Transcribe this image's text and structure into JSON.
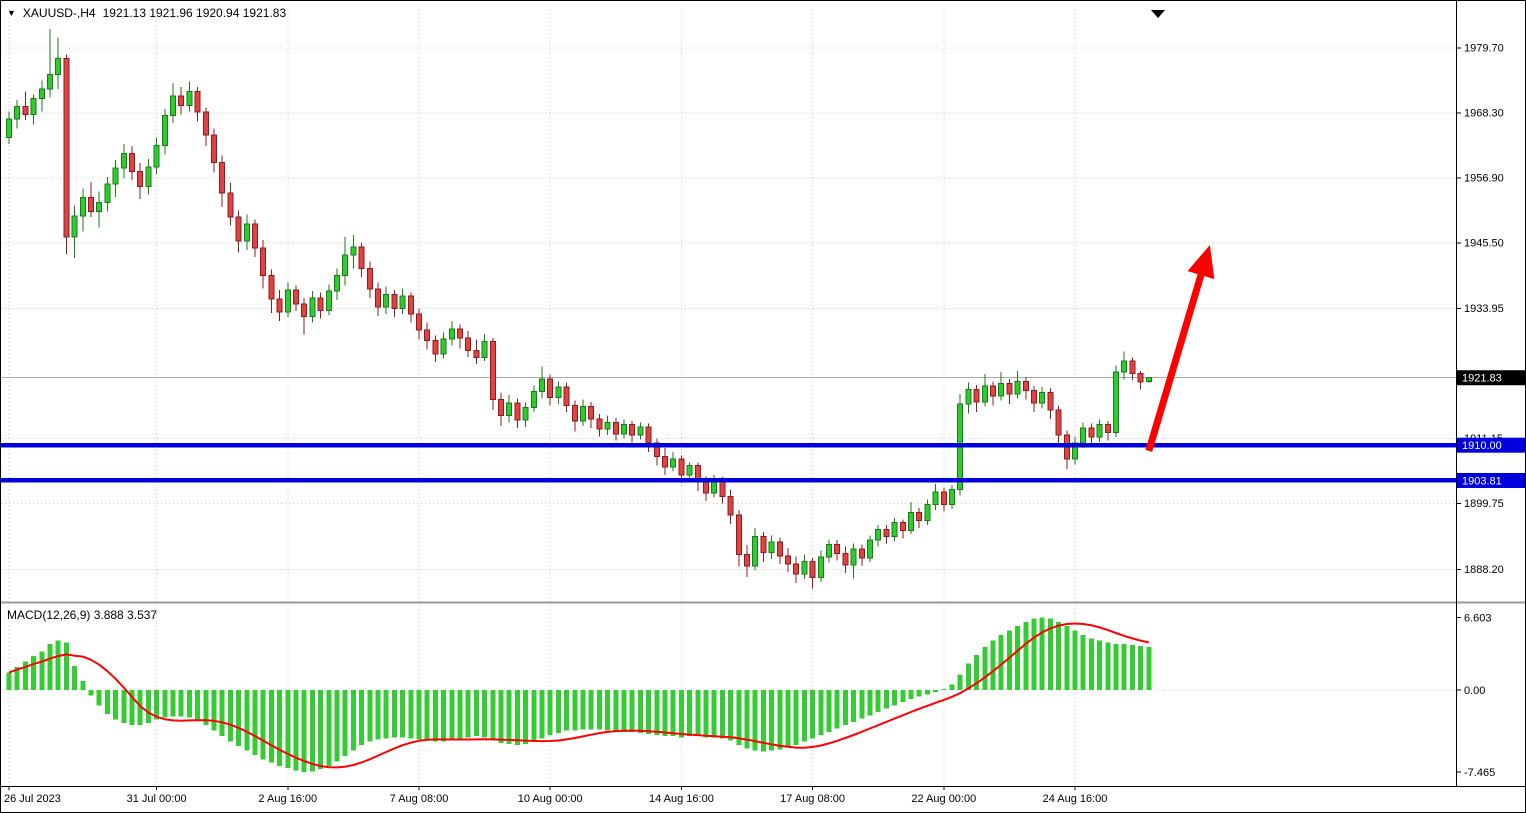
{
  "header": {
    "expand_icon": "▼",
    "symbol_timeframe": "XAUUSD-,H4",
    "ohlc": "1921.13 1921.96 1920.94 1921.83"
  },
  "indicator_label": "MACD(12,26,9) 3.888 3.537",
  "colors": {
    "bull": "#2ecc2e",
    "bull_border": "#1a7a1a",
    "bear": "#e04343",
    "bear_border": "#8f1a1a",
    "grid": "#c8c8c8",
    "level_blue": "#0000dd",
    "signal_red": "#ff0000",
    "histogram_green": "#33cc33",
    "arrow_red": "#fe0000",
    "tag_current_bg": "#000000",
    "current_price_line": "#aaaaaa"
  },
  "chart_data": {
    "type": "candlestick",
    "symbol": "XAUUSD-",
    "timeframe": "H4",
    "title": "XAUUSD-,H4 1921.13 1921.96 1920.94 1921.83",
    "price_axis": {
      "ticks": [
        {
          "value": 1979.7,
          "label": "1979.70"
        },
        {
          "value": 1968.3,
          "label": "1968.30"
        },
        {
          "value": 1956.9,
          "label": "1956.90"
        },
        {
          "value": 1945.5,
          "label": "1945.50"
        },
        {
          "value": 1933.95,
          "label": "1933.95"
        },
        {
          "value": 1911.15,
          "label": "1911.15"
        },
        {
          "value": 1899.75,
          "label": "1899.75"
        },
        {
          "value": 1888.2,
          "label": "1888.20"
        }
      ],
      "current": {
        "value": 1921.83,
        "label": "1921.83"
      },
      "visible_top": 1986.5,
      "visible_bottom": 1882.5
    },
    "levels": [
      {
        "value": 1910.0,
        "label": "1910.00"
      },
      {
        "value": 1903.81,
        "label": "1903.81"
      }
    ],
    "time_labels": [
      {
        "index": 0,
        "text": "26 Jul 2023"
      },
      {
        "index": 18,
        "text": "31 Jul 00:00"
      },
      {
        "index": 34,
        "text": "2 Aug 16:00"
      },
      {
        "index": 50,
        "text": "7 Aug 08:00"
      },
      {
        "index": 66,
        "text": "10 Aug 00:00"
      },
      {
        "index": 82,
        "text": "14 Aug 16:00"
      },
      {
        "index": 98,
        "text": "17 Aug 08:00"
      },
      {
        "index": 114,
        "text": "22 Aug 00:00"
      },
      {
        "index": 130,
        "text": "24 Aug 16:00"
      }
    ],
    "candles": {
      "open": [
        1964.0,
        1967.2,
        1969.4,
        1968.0,
        1970.8,
        1972.5,
        1975.0,
        1977.8,
        1946.5,
        1950.2,
        1953.4,
        1951.0,
        1952.6,
        1955.8,
        1958.6,
        1961.2,
        1958.0,
        1955.4,
        1958.8,
        1962.6,
        1967.8,
        1971.2,
        1969.6,
        1972.0,
        1968.4,
        1964.4,
        1959.6,
        1954.2,
        1950.0,
        1945.8,
        1948.8,
        1944.6,
        1939.8,
        1935.6,
        1933.4,
        1937.2,
        1934.8,
        1932.6,
        1935.8,
        1933.6,
        1937.0,
        1939.8,
        1943.4,
        1944.8,
        1941.0,
        1937.4,
        1934.2,
        1936.4,
        1934.0,
        1936.2,
        1933.0,
        1930.2,
        1928.4,
        1926.0,
        1928.6,
        1930.4,
        1928.8,
        1926.6,
        1925.4,
        1928.2,
        1918.0,
        1915.2,
        1917.4,
        1914.4,
        1916.6,
        1919.4,
        1921.6,
        1918.4,
        1920.2,
        1917.0,
        1914.2,
        1916.8,
        1914.6,
        1912.8,
        1914.0,
        1912.0,
        1913.6,
        1911.8,
        1913.2,
        1910.4,
        1908.0,
        1906.2,
        1907.6,
        1904.8,
        1906.4,
        1903.6,
        1901.6,
        1903.8,
        1901.0,
        1897.8,
        1890.8,
        1888.8,
        1894.0,
        1891.2,
        1893.0,
        1890.6,
        1889.2,
        1887.4,
        1889.6,
        1886.8,
        1890.4,
        1892.6,
        1891.0,
        1889.0,
        1891.8,
        1890.2,
        1893.4,
        1895.2,
        1894.0,
        1896.4,
        1895.0,
        1898.2,
        1896.8,
        1899.6,
        1901.8,
        1899.6,
        1902.2,
        1917.2,
        1919.8,
        1917.6,
        1920.4,
        1918.6,
        1920.8,
        1919.0,
        1921.2,
        1919.6,
        1917.4,
        1919.2,
        1916.2,
        1911.8,
        1907.6,
        1910.4,
        1913.0,
        1911.4,
        1913.6,
        1912.2,
        1922.8,
        1924.8,
        1922.6,
        1921.13
      ],
      "high": [
        1968.5,
        1970.5,
        1972.0,
        1971.5,
        1974.0,
        1983.0,
        1981.5,
        1978.5,
        1952.0,
        1955.0,
        1956.2,
        1954.5,
        1957.0,
        1960.0,
        1962.8,
        1962.5,
        1959.5,
        1960.2,
        1964.0,
        1969.0,
        1973.5,
        1972.8,
        1973.8,
        1972.8,
        1969.2,
        1965.5,
        1960.8,
        1956.0,
        1951.2,
        1950.5,
        1949.6,
        1946.0,
        1940.8,
        1937.2,
        1938.5,
        1938.0,
        1935.8,
        1937.0,
        1936.8,
        1938.2,
        1941.0,
        1946.5,
        1946.9,
        1945.5,
        1942.2,
        1938.5,
        1937.8,
        1937.2,
        1937.5,
        1936.8,
        1934.0,
        1931.5,
        1929.2,
        1929.8,
        1931.8,
        1931.2,
        1930.0,
        1928.5,
        1929.5,
        1928.8,
        1919.2,
        1918.8,
        1918.2,
        1917.5,
        1920.5,
        1923.8,
        1922.4,
        1921.2,
        1921.0,
        1917.8,
        1918.0,
        1917.6,
        1915.5,
        1915.2,
        1914.8,
        1914.5,
        1914.2,
        1914.0,
        1913.8,
        1911.2,
        1909.5,
        1908.8,
        1908.2,
        1907.0,
        1907.0,
        1904.5,
        1904.8,
        1904.4,
        1902.2,
        1898.6,
        1892.5,
        1895.5,
        1894.8,
        1894.2,
        1893.8,
        1892.0,
        1890.5,
        1890.8,
        1890.2,
        1891.5,
        1893.5,
        1893.4,
        1892.2,
        1892.8,
        1892.6,
        1894.2,
        1896.0,
        1896.0,
        1897.2,
        1897.0,
        1900.0,
        1899.0,
        1900.5,
        1903.2,
        1902.6,
        1903.0,
        1919.0,
        1921.0,
        1920.6,
        1922.5,
        1921.2,
        1922.8,
        1921.6,
        1923.0,
        1922.0,
        1920.4,
        1920.2,
        1920.0,
        1917.0,
        1912.6,
        1911.5,
        1914.0,
        1913.8,
        1914.5,
        1914.2,
        1924.0,
        1926.4,
        1925.4,
        1923.0,
        1921.96
      ],
      "low": [
        1962.8,
        1965.5,
        1967.0,
        1966.2,
        1968.5,
        1971.0,
        1972.5,
        1943.5,
        1942.8,
        1947.5,
        1950.0,
        1948.2,
        1951.0,
        1953.5,
        1956.8,
        1956.5,
        1953.2,
        1954.0,
        1957.5,
        1961.0,
        1966.5,
        1968.0,
        1968.5,
        1966.8,
        1962.5,
        1957.8,
        1951.8,
        1948.5,
        1943.8,
        1944.2,
        1943.0,
        1937.5,
        1933.2,
        1931.8,
        1932.5,
        1933.5,
        1929.4,
        1931.5,
        1932.2,
        1932.8,
        1935.5,
        1938.0,
        1941.0,
        1939.5,
        1935.8,
        1932.7,
        1933.0,
        1932.5,
        1933.0,
        1931.5,
        1928.5,
        1926.8,
        1924.6,
        1925.2,
        1927.5,
        1927.0,
        1925.5,
        1924.2,
        1924.8,
        1916.2,
        1913.4,
        1914.0,
        1913.0,
        1913.2,
        1915.8,
        1918.2,
        1917.0,
        1917.2,
        1915.8,
        1912.4,
        1913.4,
        1913.0,
        1911.5,
        1911.8,
        1910.8,
        1911.2,
        1910.5,
        1911.0,
        1908.8,
        1906.4,
        1904.8,
        1905.4,
        1903.4,
        1903.8,
        1902.0,
        1900.2,
        1900.8,
        1899.8,
        1896.2,
        1888.7,
        1886.9,
        1888.0,
        1889.5,
        1890.0,
        1889.2,
        1887.8,
        1885.8,
        1886.5,
        1884.9,
        1886.0,
        1889.4,
        1889.8,
        1887.6,
        1886.6,
        1888.8,
        1889.5,
        1892.2,
        1892.8,
        1893.2,
        1893.6,
        1894.4,
        1895.5,
        1896.0,
        1898.6,
        1898.4,
        1898.8,
        1901.2,
        1915.6,
        1915.8,
        1916.8,
        1917.0,
        1917.8,
        1917.2,
        1918.2,
        1918.0,
        1915.8,
        1916.4,
        1914.6,
        1909.8,
        1905.8,
        1906.6,
        1909.5,
        1909.8,
        1910.6,
        1910.8,
        1911.4,
        1921.5,
        1921.4,
        1919.8,
        1920.94
      ],
      "close": [
        1967.2,
        1969.4,
        1968.0,
        1970.8,
        1972.5,
        1975.0,
        1977.8,
        1946.5,
        1950.2,
        1953.4,
        1951.0,
        1952.6,
        1955.8,
        1958.6,
        1961.2,
        1958.0,
        1955.4,
        1958.8,
        1962.6,
        1967.8,
        1971.2,
        1969.6,
        1972.0,
        1968.4,
        1964.4,
        1959.6,
        1954.2,
        1950.0,
        1945.8,
        1948.8,
        1944.6,
        1939.8,
        1935.6,
        1933.4,
        1937.2,
        1934.8,
        1932.6,
        1935.8,
        1933.6,
        1937.0,
        1939.8,
        1943.4,
        1944.8,
        1941.0,
        1937.4,
        1934.2,
        1936.4,
        1934.0,
        1936.2,
        1933.0,
        1930.2,
        1928.4,
        1926.0,
        1928.6,
        1930.4,
        1928.8,
        1926.6,
        1925.4,
        1928.2,
        1918.0,
        1915.2,
        1917.4,
        1914.4,
        1916.6,
        1919.4,
        1921.6,
        1918.4,
        1920.2,
        1917.0,
        1914.2,
        1916.8,
        1914.6,
        1912.8,
        1914.0,
        1912.0,
        1913.6,
        1911.8,
        1913.2,
        1910.4,
        1908.0,
        1906.2,
        1907.6,
        1904.8,
        1906.4,
        1903.6,
        1901.6,
        1903.8,
        1901.0,
        1897.8,
        1890.8,
        1888.8,
        1894.0,
        1891.2,
        1893.0,
        1890.6,
        1889.2,
        1887.4,
        1889.6,
        1886.8,
        1890.4,
        1892.6,
        1891.0,
        1889.0,
        1891.8,
        1890.2,
        1893.4,
        1895.2,
        1894.0,
        1896.4,
        1895.0,
        1898.2,
        1896.8,
        1899.6,
        1901.8,
        1899.6,
        1902.2,
        1917.2,
        1919.8,
        1917.6,
        1920.4,
        1918.6,
        1920.8,
        1919.0,
        1921.2,
        1919.6,
        1917.4,
        1919.2,
        1916.2,
        1911.8,
        1907.6,
        1910.4,
        1913.0,
        1911.4,
        1913.6,
        1912.2,
        1922.8,
        1924.8,
        1922.6,
        1921.1,
        1921.83
      ]
    },
    "macd": {
      "params": "12,26,9",
      "main_last": "3.888",
      "signal_last": "3.537",
      "signal_period": 9,
      "axis_ticks": [
        {
          "value": 6.603,
          "label": "6.603"
        },
        {
          "value": 0,
          "label": "0.00"
        },
        {
          "value": -7.465,
          "label": "-7.465"
        }
      ],
      "values": [
        1.6,
        2.1,
        2.6,
        3.1,
        3.5,
        4.2,
        4.5,
        4.3,
        2.2,
        0.8,
        -0.5,
        -1.4,
        -2.2,
        -2.7,
        -3.0,
        -3.2,
        -3.2,
        -3.0,
        -2.7,
        -2.5,
        -2.4,
        -2.4,
        -2.5,
        -2.8,
        -3.2,
        -3.7,
        -4.2,
        -4.7,
        -5.1,
        -5.5,
        -5.9,
        -6.3,
        -6.6,
        -6.9,
        -7.1,
        -7.3,
        -7.465,
        -7.4,
        -7.2,
        -6.9,
        -6.5,
        -6.0,
        -5.5,
        -5.0,
        -4.7,
        -4.5,
        -4.4,
        -4.3,
        -4.3,
        -4.4,
        -4.5,
        -4.6,
        -4.7,
        -4.7,
        -4.6,
        -4.4,
        -4.3,
        -4.2,
        -4.3,
        -4.6,
        -4.8,
        -4.9,
        -5.0,
        -4.9,
        -4.7,
        -4.4,
        -4.1,
        -3.9,
        -3.7,
        -3.7,
        -3.6,
        -3.6,
        -3.6,
        -3.7,
        -3.7,
        -3.8,
        -3.8,
        -3.9,
        -4.0,
        -4.1,
        -4.2,
        -4.2,
        -4.3,
        -4.2,
        -4.2,
        -4.3,
        -4.3,
        -4.4,
        -4.6,
        -5.0,
        -5.3,
        -5.5,
        -5.6,
        -5.5,
        -5.4,
        -5.2,
        -5.0,
        -4.7,
        -4.4,
        -4.1,
        -3.8,
        -3.5,
        -3.2,
        -2.9,
        -2.6,
        -2.3,
        -2.0,
        -1.7,
        -1.4,
        -1.1,
        -0.8,
        -0.6,
        -0.4,
        -0.2,
        0.1,
        0.5,
        1.4,
        2.4,
        3.2,
        3.9,
        4.5,
        5.0,
        5.4,
        5.8,
        6.2,
        6.5,
        6.603,
        6.5,
        6.2,
        5.8,
        5.4,
        5.0,
        4.7,
        4.5,
        4.3,
        4.2,
        4.2,
        4.1,
        4.0,
        3.888
      ]
    },
    "arrow": {
      "from": {
        "index": 139,
        "price": 1909.0
      },
      "to": {
        "index": 145.6,
        "price": 1941.0
      }
    }
  }
}
